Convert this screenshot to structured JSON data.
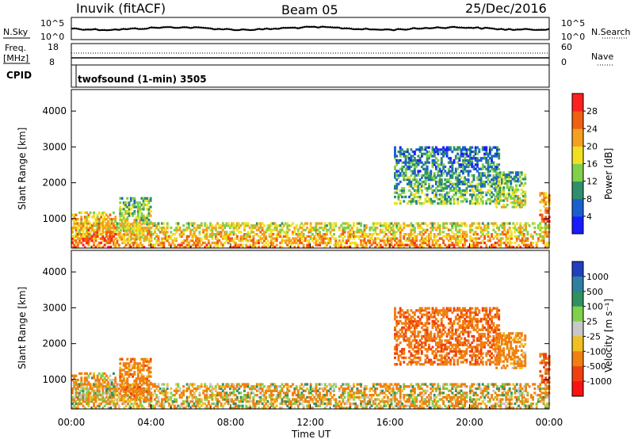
{
  "header": {
    "station": "Inuvik (fitACF)",
    "beam": "Beam 05",
    "date": "25/Dec/2016"
  },
  "noise_panel": {
    "left_label": "N.Sky",
    "right_label": "N.Search",
    "left_ticks": [
      "10^5",
      "10^0"
    ],
    "right_ticks": [
      "10^5",
      "10^0"
    ]
  },
  "freq_panel": {
    "left_label_line1": "Freq.",
    "left_label_line2": "[MHz]",
    "right_label": "Nave",
    "left_ticks": [
      "18",
      "8"
    ],
    "right_ticks": [
      "60",
      "0"
    ]
  },
  "cpid_panel": {
    "label": "CPID",
    "text": "twofsound (1-min) 3505"
  },
  "power_panel": {
    "ylabel": "Slant Range [km]",
    "cbar_label": "Power [dB]",
    "cbar_ticks": [
      "28",
      "24",
      "20",
      "16",
      "12",
      "8",
      "4"
    ],
    "cbar_colors": [
      "#1a1aff",
      "#1a5fd0",
      "#2f8f6a",
      "#7fd04a",
      "#f0e020",
      "#f4a020",
      "#f06010",
      "#ff2020"
    ]
  },
  "velocity_panel": {
    "ylabel": "Slant Range [km]",
    "cbar_label": "Velocity [m s⁻¹]",
    "cbar_ticks": [
      "1000",
      "500",
      "100",
      "25",
      "-25",
      "-100",
      "-500",
      "-1000"
    ],
    "cbar_colors": [
      "#2040c0",
      "#2f7fa0",
      "#2f9060",
      "#7fd04a",
      "#c8c8c8",
      "#f0c020",
      "#f08010",
      "#f04010",
      "#ff1010"
    ]
  },
  "x_axis": {
    "label": "Time UT",
    "ticks": [
      "00:00",
      "04:00",
      "08:00",
      "12:00",
      "16:00",
      "20:00",
      "00:00"
    ]
  },
  "chart_data": {
    "type": "heatmap",
    "title": "Inuvik (fitACF)",
    "subtitle": "Beam 05  25/Dec/2016",
    "xlabel": "Time UT",
    "ylabel": "Slant Range [km]",
    "xlim": [
      "00:00",
      "24:00"
    ],
    "ylim": [
      180,
      4600
    ],
    "y_ticks": [
      1000,
      2000,
      3000,
      4000
    ],
    "power_scale": {
      "min": 0,
      "max": 32,
      "unit": "dB"
    },
    "velocity_scale": {
      "min": -1200,
      "max": 1200,
      "unit": "m/s"
    },
    "scatter_regions": [
      {
        "t_start": 0.0,
        "t_end": 24.0,
        "r_min": 180,
        "r_max": 900,
        "power_dB": 24,
        "velocity": -100
      },
      {
        "t_start": 0.0,
        "t_end": 2.2,
        "r_min": 300,
        "r_max": 1200,
        "power_dB": 26,
        "velocity": -100
      },
      {
        "t_start": 2.4,
        "t_end": 4.0,
        "r_min": 400,
        "r_max": 1600,
        "power_dB": 20,
        "velocity": -300
      },
      {
        "t_start": 16.2,
        "t_end": 21.5,
        "r_min": 1400,
        "r_max": 3000,
        "power_dB": 14,
        "velocity": -400
      },
      {
        "t_start": 21.3,
        "t_end": 22.8,
        "r_min": 1300,
        "r_max": 2300,
        "power_dB": 18,
        "velocity": -250
      },
      {
        "t_start": 23.5,
        "t_end": 24.0,
        "r_min": 900,
        "r_max": 1700,
        "power_dB": 28,
        "velocity": -500
      }
    ]
  }
}
